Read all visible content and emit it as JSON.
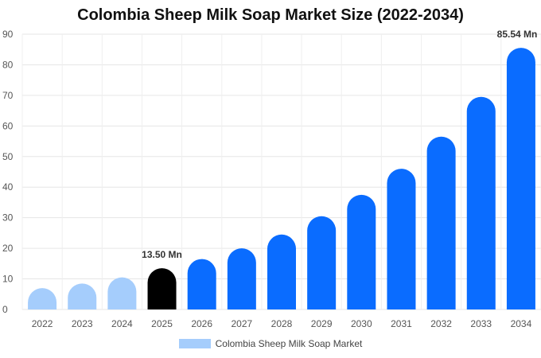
{
  "chart_data": {
    "type": "bar",
    "title": "Colombia Sheep Milk Soap Market Size (2022-2034)",
    "categories": [
      "2022",
      "2023",
      "2024",
      "2025",
      "2026",
      "2027",
      "2028",
      "2029",
      "2030",
      "2031",
      "2032",
      "2033",
      "2034"
    ],
    "series": [
      {
        "name": "Colombia Sheep Milk Soap Market",
        "values": [
          7.0,
          8.5,
          10.5,
          13.5,
          16.5,
          20.0,
          24.5,
          30.5,
          37.5,
          46.0,
          56.5,
          69.5,
          85.54
        ]
      }
    ],
    "data_labels": [
      {
        "category": "2025",
        "text": "13.50 Mn"
      },
      {
        "category": "2034",
        "text": "85.54 Mn"
      }
    ],
    "ylim": [
      0,
      90
    ],
    "yticks": [
      0,
      10,
      20,
      30,
      40,
      50,
      60,
      70,
      80,
      90
    ],
    "xlabel": "",
    "ylabel": "",
    "grid": true,
    "legend_position": "bottom",
    "colors": {
      "historic": "#a5cdfc",
      "current": "#000000",
      "forecast": "#0a6cff",
      "grid": "#e6e6e6"
    },
    "bar_color_groups": [
      "historic",
      "historic",
      "historic",
      "current",
      "forecast",
      "forecast",
      "forecast",
      "forecast",
      "forecast",
      "forecast",
      "forecast",
      "forecast",
      "forecast"
    ]
  }
}
